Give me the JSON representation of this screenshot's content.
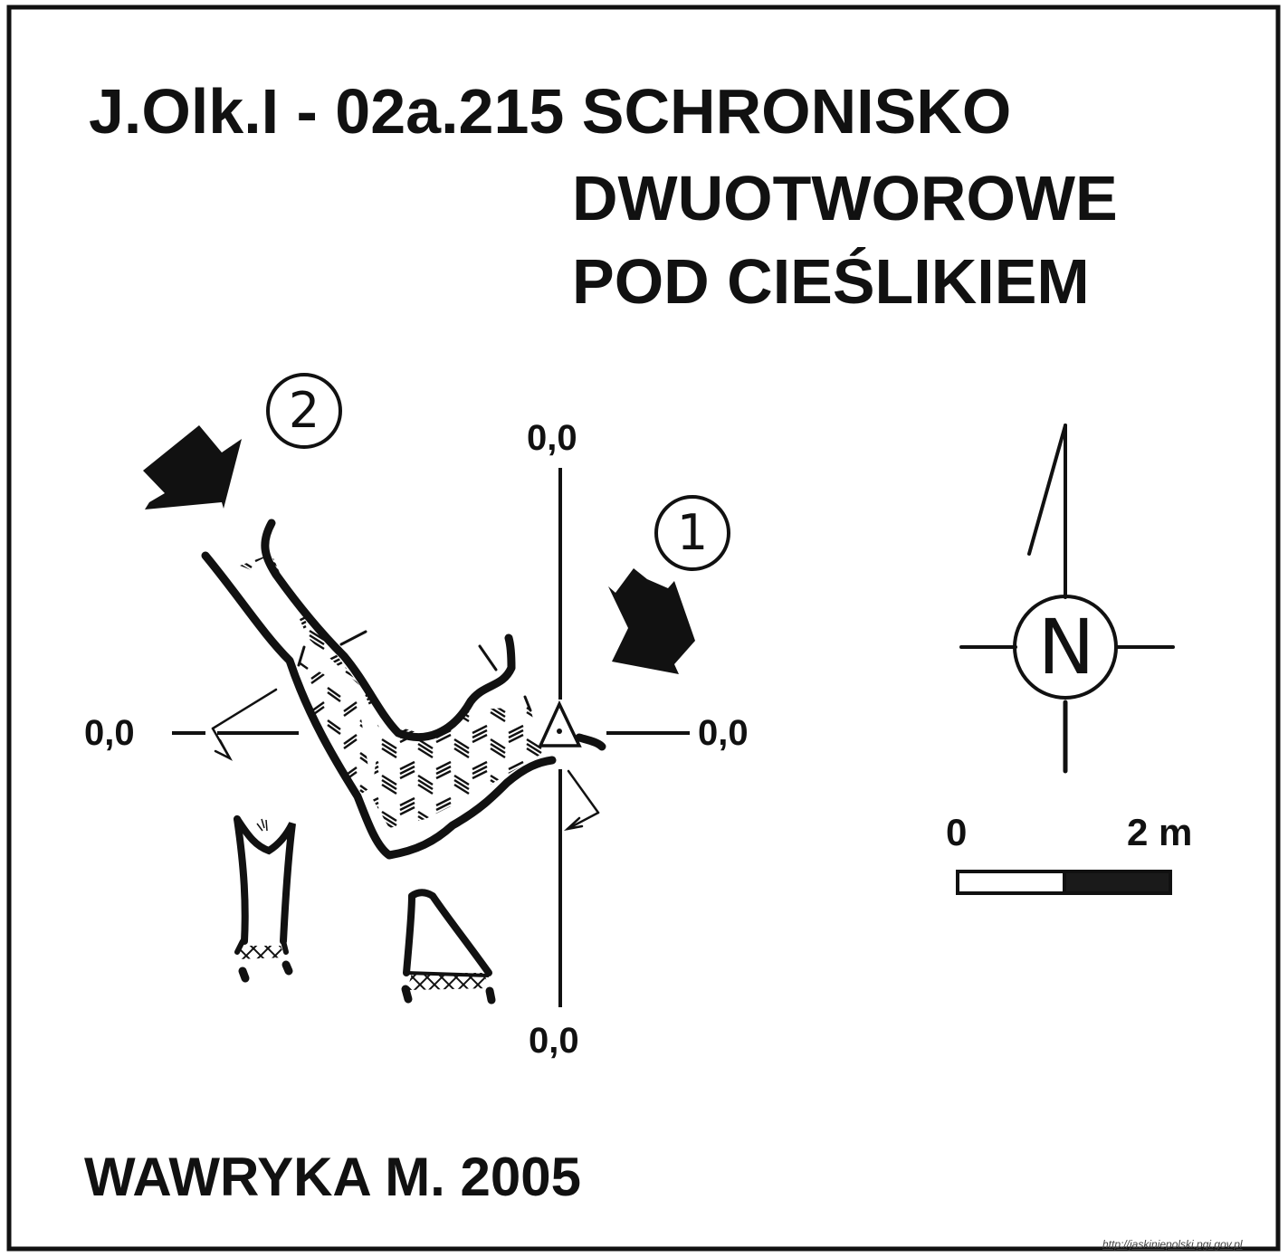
{
  "title": {
    "line1": "J.Olk.I - 02a.215  SCHRONISKO",
    "line2": "DWUOTWOROWE",
    "line3": "POD CIEŚLIKIEM"
  },
  "author": "WAWRYKA M. 2005",
  "coordinates": {
    "top": "0,0",
    "left": "0,0",
    "right": "0,0",
    "bottom": "0,0"
  },
  "entrances": {
    "first": "1",
    "second": "2"
  },
  "north": {
    "letter": "N",
    "icon": "north-arrow-icon"
  },
  "scale": {
    "start_label": "0",
    "end_label": "2 m",
    "icon": "scale-bar-icon"
  },
  "source_url": "http://jaskiniepolski.pgi.gov.pl",
  "colors": {
    "ink": "#111111",
    "background": "#ffffff"
  }
}
